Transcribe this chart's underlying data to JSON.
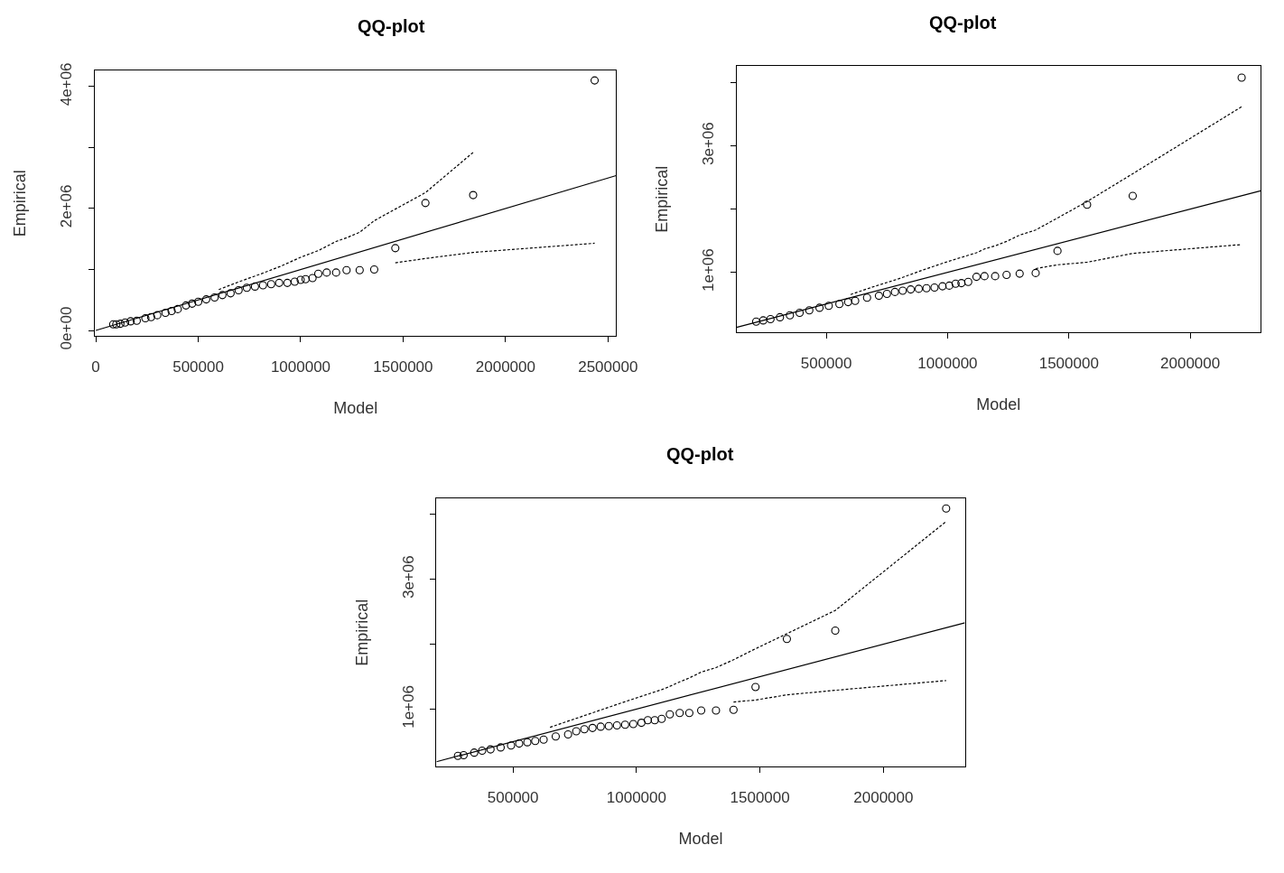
{
  "chart_data": [
    {
      "type": "scatter",
      "title": "QQ-plot",
      "xlabel": "Model",
      "ylabel": "Empirical",
      "xlim": [
        -5000,
        2540000
      ],
      "ylim": [
        -90000,
        4260000
      ],
      "xticks": [
        0,
        500000,
        1000000,
        1500000,
        2000000,
        2500000
      ],
      "yticks": [
        {
          "value": 0,
          "label": "0e+00"
        },
        {
          "value": 1000000,
          "label": null
        },
        {
          "value": 2000000,
          "label": "2e+06"
        },
        {
          "value": 3000000,
          "label": null
        },
        {
          "value": 4000000,
          "label": "4e+06"
        }
      ],
      "series": [
        {
          "marker": "circle",
          "color": "#000000",
          "x": [
            85000,
            100000,
            120000,
            143000,
            170000,
            200000,
            242000,
            270000,
            300000,
            340000,
            370000,
            400000,
            440000,
            470000,
            500000,
            539000,
            580000,
            618000,
            658000,
            697000,
            737000,
            777000,
            816000,
            856000,
            895000,
            935000,
            971000,
            1000000,
            1024000,
            1058000,
            1086000,
            1127000,
            1173000,
            1224000,
            1288000,
            1359000,
            1462000,
            1609000,
            1842000,
            2435000
          ],
          "values": [
            100000,
            100000,
            110000,
            130000,
            150000,
            160000,
            200000,
            220000,
            250000,
            290000,
            320000,
            350000,
            410000,
            440000,
            470000,
            510000,
            540000,
            580000,
            610000,
            660000,
            700000,
            720000,
            740000,
            760000,
            780000,
            780000,
            800000,
            830000,
            840000,
            860000,
            930000,
            950000,
            950000,
            990000,
            990000,
            1000000,
            1350000,
            2090000,
            2220000,
            4100000
          ]
        },
        {
          "type": "line",
          "marker": "none",
          "color": "#000000",
          "line_style": "solid",
          "x": [
            0,
            2540000
          ],
          "values": [
            0,
            2540000
          ]
        },
        {
          "type": "line",
          "marker": "none",
          "color": "#000000",
          "line_style": "dashed",
          "x": [
            600000,
            700000,
            800000,
            900000,
            1000000,
            1086000,
            1127000,
            1173000,
            1224000,
            1288000,
            1359000,
            1462000,
            1609000,
            1842000
          ],
          "values": [
            670000,
            800000,
            920000,
            1050000,
            1200000,
            1310000,
            1380000,
            1460000,
            1520000,
            1610000,
            1800000,
            1990000,
            2260000,
            2920000
          ]
        },
        {
          "type": "line",
          "marker": "none",
          "color": "#000000",
          "line_style": "dashed",
          "x": [
            1462000,
            1609000,
            1842000,
            2435000
          ],
          "values": [
            1110000,
            1180000,
            1280000,
            1430000
          ]
        }
      ]
    },
    {
      "type": "scatter",
      "title": "QQ-plot",
      "xlabel": "Model",
      "ylabel": "Empirical",
      "xlim": [
        130000,
        2290000
      ],
      "ylim": [
        50000,
        4260000
      ],
      "xticks": [
        500000,
        1000000,
        1500000,
        2000000
      ],
      "yticks": [
        {
          "value": 1000000,
          "label": "1e+06"
        },
        {
          "value": 2000000,
          "label": null
        },
        {
          "value": 3000000,
          "label": "3e+06"
        },
        {
          "value": 4000000,
          "label": null
        }
      ],
      "series": [
        {
          "marker": "circle",
          "color": "#000000",
          "x": [
            211000,
            240000,
            270000,
            309000,
            350000,
            390000,
            430000,
            472000,
            510000,
            554000,
            590000,
            619000,
            668000,
            717000,
            750000,
            783000,
            815000,
            848000,
            881000,
            913000,
            946000,
            979000,
            1007000,
            1033000,
            1057000,
            1085000,
            1119000,
            1152000,
            1196000,
            1243000,
            1297000,
            1363000,
            1453000,
            1575000,
            1763000,
            2212000
          ],
          "values": [
            220000,
            240000,
            260000,
            290000,
            320000,
            360000,
            400000,
            440000,
            470000,
            500000,
            530000,
            550000,
            600000,
            630000,
            660000,
            690000,
            710000,
            730000,
            740000,
            750000,
            760000,
            780000,
            790000,
            820000,
            830000,
            850000,
            930000,
            940000,
            940000,
            960000,
            980000,
            990000,
            1340000,
            2070000,
            2210000,
            4080000
          ]
        },
        {
          "type": "line",
          "marker": "none",
          "color": "#000000",
          "line_style": "solid",
          "x": [
            130000,
            2290000
          ],
          "values": [
            130000,
            2290000
          ]
        },
        {
          "type": "line",
          "marker": "none",
          "color": "#000000",
          "line_style": "dashed",
          "x": [
            600000,
            700000,
            800000,
            900000,
            1000000,
            1085000,
            1119000,
            1152000,
            1196000,
            1243000,
            1297000,
            1363000,
            1453000,
            1575000,
            1763000,
            2212000
          ],
          "values": [
            650000,
            780000,
            900000,
            1040000,
            1170000,
            1270000,
            1310000,
            1370000,
            1420000,
            1490000,
            1590000,
            1670000,
            1860000,
            2120000,
            2560000,
            3620000
          ]
        },
        {
          "type": "line",
          "marker": "none",
          "color": "#000000",
          "line_style": "dashed",
          "x": [
            1363000,
            1453000,
            1575000,
            1763000,
            2212000
          ],
          "values": [
            1060000,
            1120000,
            1160000,
            1300000,
            1440000
          ]
        }
      ]
    },
    {
      "type": "scatter",
      "title": "QQ-plot",
      "xlabel": "Model",
      "ylabel": "Empirical",
      "xlim": [
        190000,
        2330000
      ],
      "ylim": [
        110000,
        4250000
      ],
      "xticks": [
        500000,
        1000000,
        1500000,
        2000000
      ],
      "yticks": [
        {
          "value": 1000000,
          "label": "1e+06"
        },
        {
          "value": 2000000,
          "label": null
        },
        {
          "value": 3000000,
          "label": "3e+06"
        },
        {
          "value": 4000000,
          "label": null
        }
      ],
      "series": [
        {
          "marker": "circle",
          "color": "#000000",
          "x": [
            277000,
            300000,
            343000,
            375000,
            409000,
            450000,
            492000,
            525000,
            558000,
            590000,
            624000,
            673000,
            723000,
            756000,
            789000,
            822000,
            855000,
            888000,
            921000,
            954000,
            987000,
            1020000,
            1046000,
            1074000,
            1102000,
            1135000,
            1175000,
            1214000,
            1262000,
            1322000,
            1393000,
            1482000,
            1609000,
            1805000,
            2254000
          ],
          "values": [
            280000,
            290000,
            330000,
            360000,
            380000,
            410000,
            440000,
            470000,
            490000,
            510000,
            530000,
            580000,
            610000,
            660000,
            690000,
            710000,
            730000,
            740000,
            750000,
            760000,
            770000,
            790000,
            830000,
            830000,
            850000,
            920000,
            940000,
            940000,
            980000,
            980000,
            990000,
            1340000,
            2080000,
            2210000,
            4090000
          ]
        },
        {
          "type": "line",
          "marker": "none",
          "color": "#000000",
          "line_style": "solid",
          "x": [
            190000,
            2330000
          ],
          "values": [
            190000,
            2330000
          ]
        },
        {
          "type": "line",
          "marker": "none",
          "color": "#000000",
          "line_style": "dashed",
          "x": [
            650000,
            750000,
            850000,
            950000,
            1030000,
            1102000,
            1135000,
            1175000,
            1214000,
            1262000,
            1322000,
            1393000,
            1482000,
            1805000,
            2254000
          ],
          "values": [
            720000,
            850000,
            980000,
            1110000,
            1210000,
            1300000,
            1350000,
            1420000,
            1480000,
            1570000,
            1640000,
            1760000,
            1930000,
            2520000,
            3890000
          ]
        },
        {
          "type": "line",
          "marker": "none",
          "color": "#000000",
          "line_style": "dashed",
          "x": [
            1393000,
            1482000,
            1609000,
            1805000,
            2254000
          ],
          "values": [
            1110000,
            1140000,
            1220000,
            1290000,
            1440000
          ]
        }
      ]
    }
  ]
}
